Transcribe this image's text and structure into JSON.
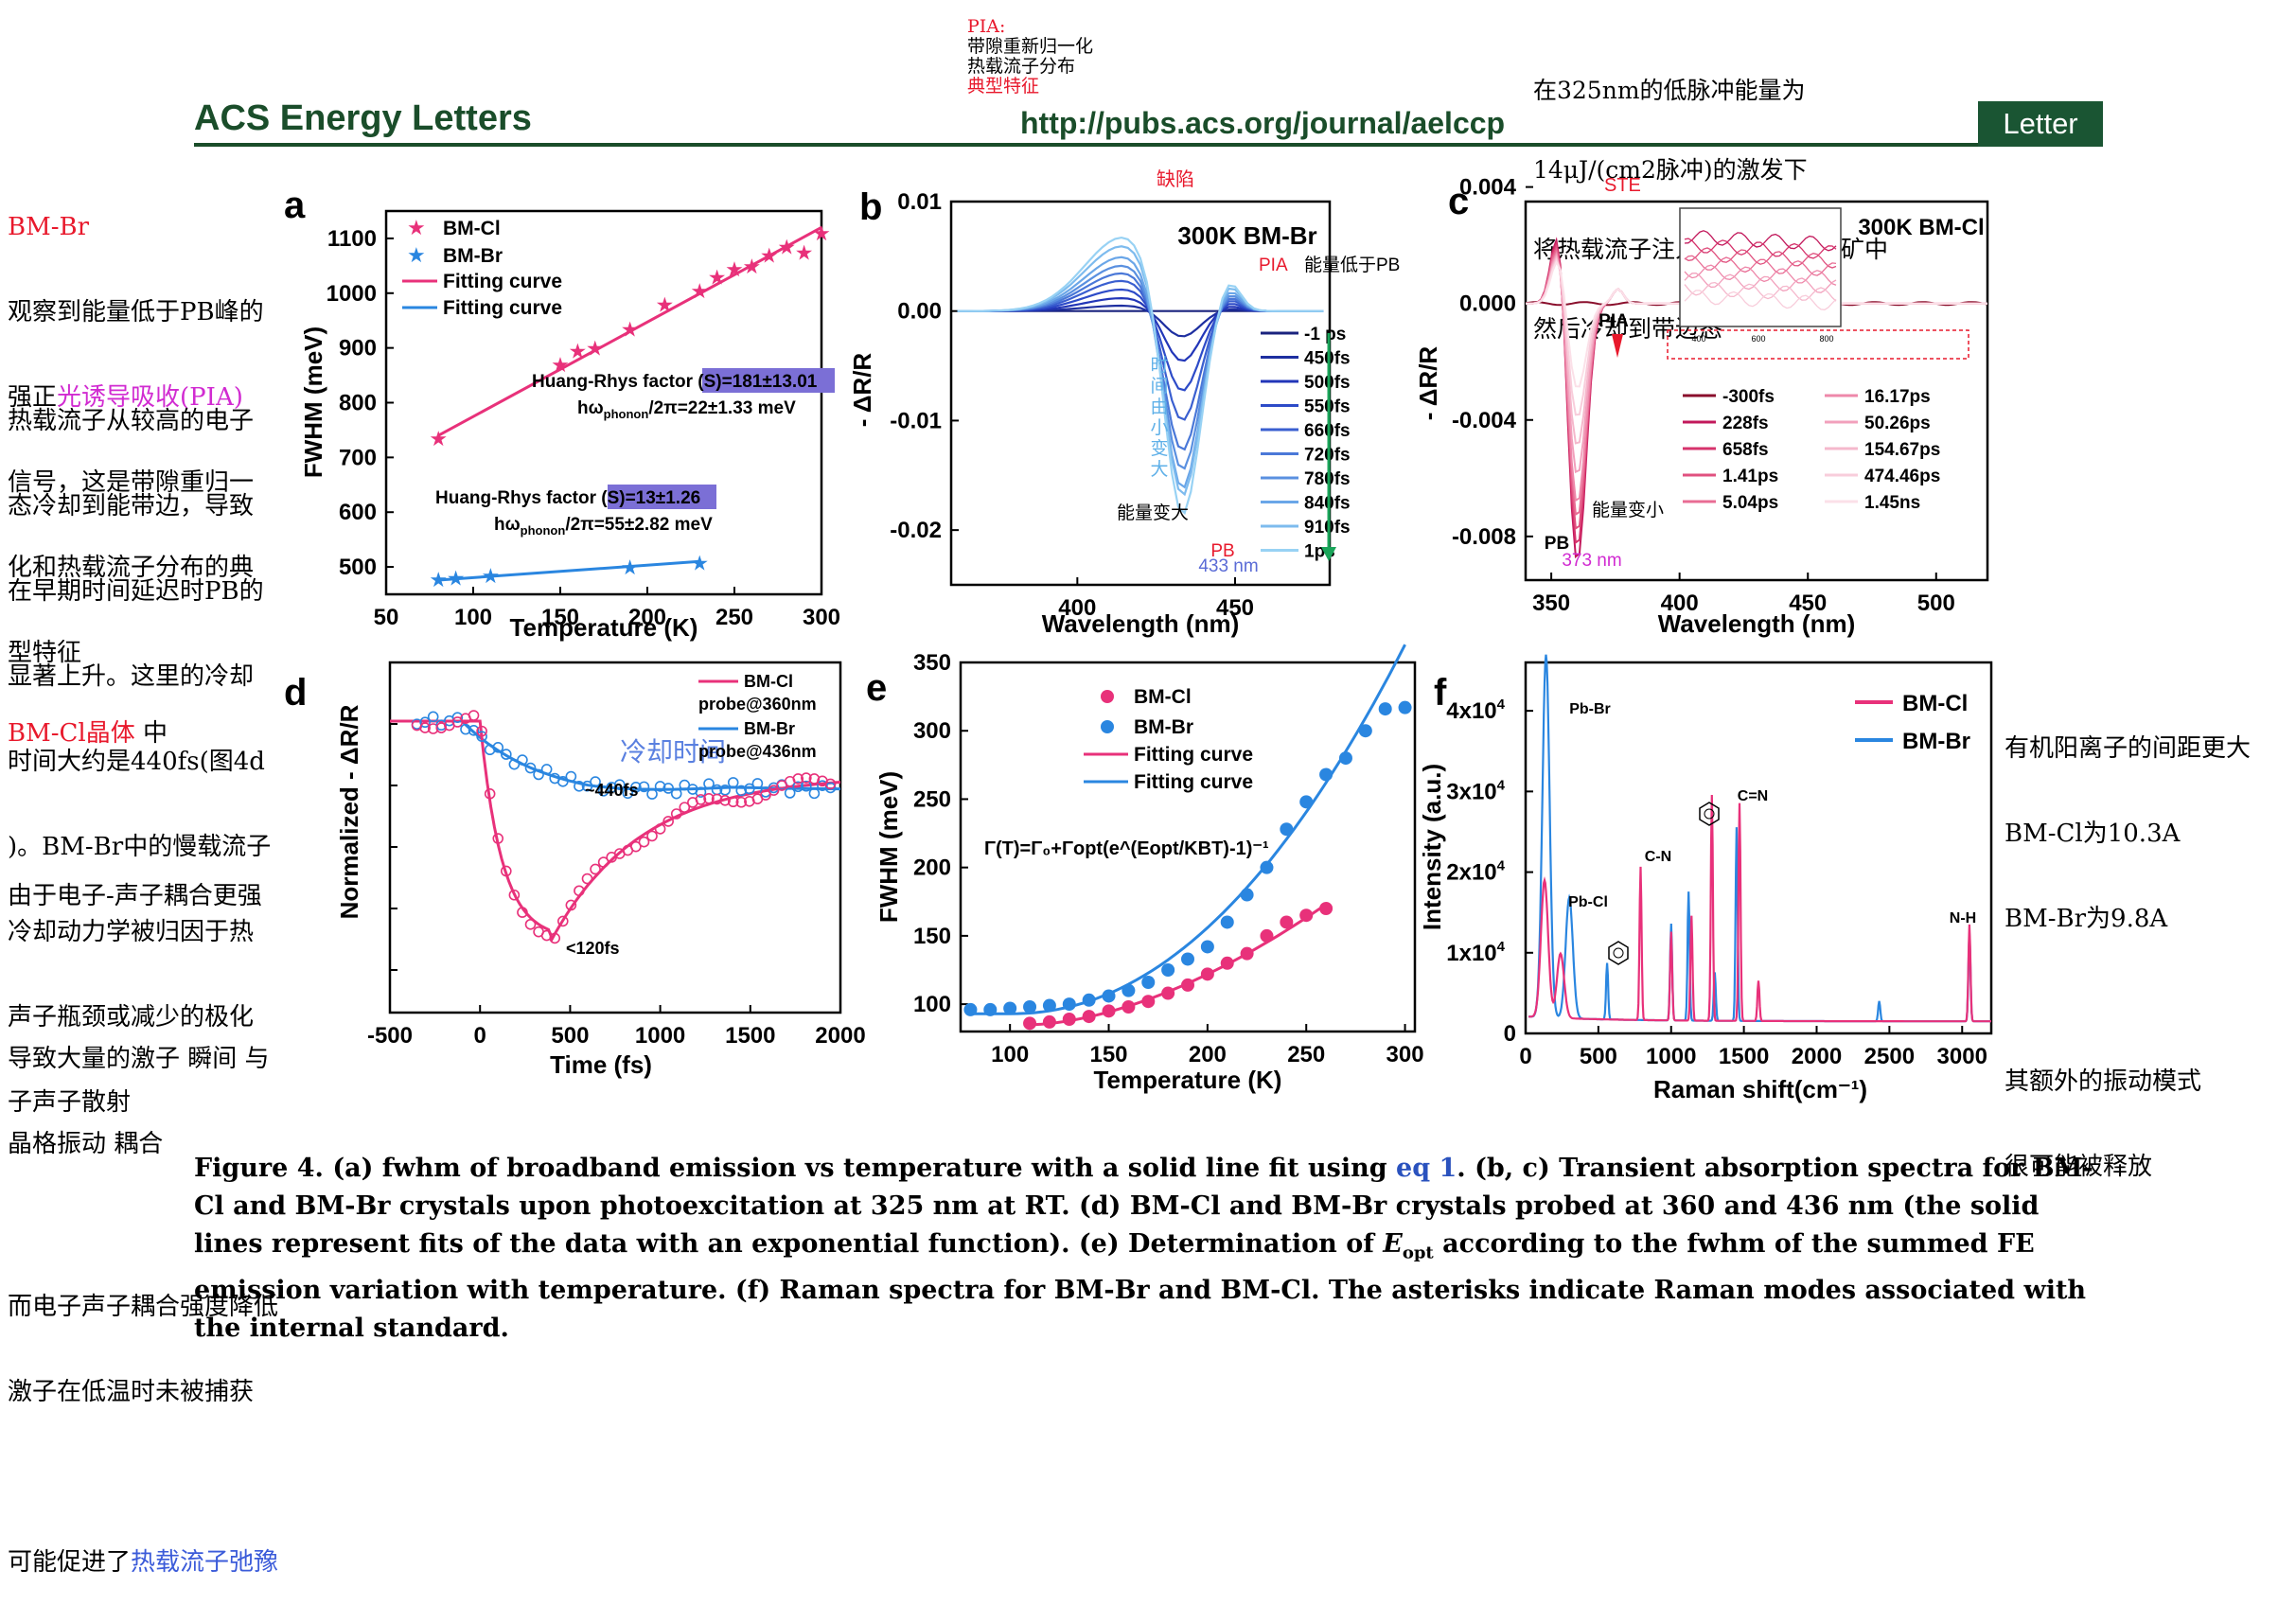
{
  "header": {
    "journal": "ACS Energy Letters",
    "url": "http://pubs.acs.org/journal/aelccp",
    "tab": "Letter",
    "pia_note": {
      "line1": "PIA:",
      "line2": "带隙重新归一化",
      "line3": "热载流子分布",
      "line4": "典型特征"
    },
    "top_right_note": {
      "line1": "在325nm的低脉冲能量为",
      "line2": "14μJ/(cm2脉冲)的激发下",
      "line3": "将热载流子注入两个二维钙钛矿中",
      "line4": "然后冷却到带边态"
    }
  },
  "left_notes": {
    "title": "BM-Br",
    "p1a": "观察到能量低于PB峰的",
    "p1b": "强正",
    "p1b_link": "光诱导吸收",
    "p1b_end": "(PIA)",
    "p1c": "信号，这是带隙重归一",
    "p1d": "化和热载流子分布的典",
    "p1e": "型特征",
    "p2": [
      "热载流子从较高的电子",
      "态冷却到能带边，导致",
      "在早期时间延迟时PB的",
      "显著上升。这里的冷却",
      "时间大约是440fs(图4d",
      ")。BM-Br中的慢载流子",
      "冷却动力学被归因于热",
      "声子瓶颈或减少的极化",
      "子声子散射"
    ],
    "p3_title": "BM-Cl晶体",
    "p3_title_end": "中",
    "p3": "由于电子-声子耦合更强",
    "p4a": "导致大量的激子 瞬间 与",
    "p4b": "晶格振动 耦合",
    "p5a": "而电子声子耦合强度降低",
    "p5b": "激子在低温时未被捕获",
    "p6a": "可能促进了",
    "p6b": "热载流子弛豫"
  },
  "right_notes": {
    "l1": "有机阳离子的间距更大",
    "l2": "BM-Cl为10.3A",
    "l3": "BM-Br为9.8A",
    "l4": "其额外的振动模式",
    "l5": "很可能被释放"
  },
  "caption": {
    "part1": "Figure 4. (a) fwhm of broadband emission vs temperature with a solid line fit using ",
    "link": "eq 1",
    "part2": ". (b, c) Transient absorption spectra for BM-Cl and BM-Br crystals upon photoexcitation at 325 nm at RT. (d) BM-Cl and BM-Br crystals probed at 360 and 436 nm (the solid lines represent fits of the data with an exponential function). (e) Determination of ",
    "eopt": "E",
    "eopt_sub": "opt",
    "part3": " according to the fwhm of the summed FE emission variation with temperature. (f) Raman spectra for BM-Br and BM-Cl. The asterisks indicate Raman modes associated with the internal standard."
  },
  "colors": {
    "pink": "#e8317a",
    "blue": "#2a86e0",
    "darkgreen": "#1a4d2a"
  },
  "chart_data": [
    {
      "panel": "a",
      "type": "scatter",
      "xlabel": "Temperature (K)",
      "ylabel": "FWHM (meV)",
      "xlim": [
        50,
        300
      ],
      "ylim": [
        450,
        1150
      ],
      "xticks": [
        50,
        100,
        150,
        200,
        250,
        300
      ],
      "yticks": [
        500,
        600,
        700,
        800,
        900,
        1000,
        1100
      ],
      "legend": [
        "BM-Cl",
        "BM-Br",
        "Fitting curve",
        "Fitting curve"
      ],
      "annotations": {
        "cl_factor": "Huang-Rhys factor (S)=181±13.01",
        "cl_phonon": "hω",
        "cl_phonon_sub": "phonon",
        "cl_phonon_end": "/2π=22±1.33 meV",
        "br_factor": "Huang-Rhys factor (S)=13±1.26",
        "br_phonon": "hω",
        "br_phonon_sub": "phonon",
        "br_phonon_end": "/2π=55±2.82 meV"
      },
      "series": [
        {
          "name": "BM-Cl",
          "x": [
            80,
            150,
            160,
            170,
            190,
            210,
            230,
            240,
            250,
            260,
            270,
            280,
            290,
            300
          ],
          "y": [
            735,
            870,
            895,
            900,
            935,
            980,
            1005,
            1030,
            1045,
            1050,
            1070,
            1085,
            1075,
            1110
          ]
        },
        {
          "name": "BM-Br",
          "x": [
            80,
            90,
            110,
            190,
            230
          ],
          "y": [
            478,
            480,
            485,
            500,
            508
          ]
        }
      ],
      "fits": [
        {
          "x": [
            80,
            300
          ],
          "y": [
            740,
            1120
          ]
        },
        {
          "x": [
            80,
            230
          ],
          "y": [
            476,
            510
          ]
        }
      ]
    },
    {
      "panel": "b",
      "type": "line",
      "title": "300K BM-Br",
      "xlabel": "Wavelength (nm)",
      "ylabel": "- ΔR/R",
      "xlim": [
        360,
        480
      ],
      "ylim": [
        -0.025,
        0.01
      ],
      "xticks": [
        400,
        450
      ],
      "yticks": [
        0.01,
        0.0,
        -0.01,
        -0.02
      ],
      "legend": [
        "-1 ps",
        "450fs",
        "500fs",
        "550fs",
        "660fs",
        "720fs",
        "780fs",
        "840fs",
        "910fs",
        "1ps"
      ],
      "notes": {
        "pia": "PIA",
        "pia_text": "能量低于PB",
        "top": "缺陷",
        "time": [
          "时",
          "间",
          "由",
          "小",
          "变",
          "大"
        ],
        "energy": "能量变大",
        "pb": "PB",
        "pb_nm": "433 nm"
      },
      "pb_minima": [
        0.0,
        -0.0025,
        -0.005,
        -0.008,
        -0.011,
        -0.014,
        -0.016,
        -0.018,
        -0.019,
        -0.021
      ],
      "pia_peak": [
        0.0,
        0.0005,
        0.0012,
        0.002,
        0.0028,
        0.0035,
        0.0042,
        0.005,
        0.006,
        0.0068
      ]
    },
    {
      "panel": "c",
      "type": "line",
      "title": "300K BM-Cl",
      "xlabel": "Wavelength (nm)",
      "ylabel": "- ΔR/R",
      "xlim": [
        340,
        520
      ],
      "ylim": [
        -0.0095,
        0.0035
      ],
      "xticks": [
        350,
        400,
        450,
        500
      ],
      "yticks": [
        0.004,
        0.0,
        -0.004,
        -0.008
      ],
      "legend": [
        "-300fs",
        "228fs",
        "658fs",
        "1.41ps",
        "5.04ps",
        "16.17ps",
        "50.26ps",
        "154.67ps",
        "474.46ps",
        "1.45ns"
      ],
      "inset_xticks": [
        400,
        600,
        800
      ],
      "notes": {
        "top": "STE",
        "pia": "PIA",
        "energy": "能量变小",
        "pb": "PB",
        "pb_nm": "373 nm"
      }
    },
    {
      "panel": "d",
      "type": "line",
      "xlabel": "Time (fs)",
      "ylabel": "Normalized - ΔR/R",
      "xlim": [
        -500,
        2000
      ],
      "xticks": [
        -500,
        0,
        500,
        1000,
        1500,
        2000
      ],
      "legend": [
        "BM-Cl",
        "probe@360nm",
        "BM-Br",
        "probe@436nm"
      ],
      "notes": {
        "cooling": "冷却时间",
        "br_time": "~440fs",
        "cl_time": "<120fs"
      }
    },
    {
      "panel": "e",
      "type": "scatter",
      "xlabel": "Temperature (K)",
      "ylabel": "FWHM (meV)",
      "xlim": [
        75,
        305
      ],
      "ylim": [
        80,
        350
      ],
      "xticks": [
        100,
        150,
        200,
        250,
        300
      ],
      "yticks": [
        100,
        150,
        200,
        250,
        300,
        350
      ],
      "legend": [
        "BM-Cl",
        "BM-Br",
        "Fitting curve",
        "Fitting curve"
      ],
      "formula": "Γ(T)=Γ₀+Γopt(e^(Eopt/KBT)-1)⁻¹",
      "series": [
        {
          "name": "BM-Cl",
          "x": [
            110,
            120,
            130,
            140,
            150,
            160,
            170,
            180,
            190,
            200,
            210,
            220,
            230,
            240,
            250,
            260
          ],
          "y": [
            86,
            87,
            89,
            91,
            95,
            98,
            102,
            108,
            114,
            122,
            130,
            137,
            150,
            160,
            165,
            170
          ]
        },
        {
          "name": "BM-Br",
          "x": [
            80,
            90,
            100,
            110,
            120,
            130,
            140,
            150,
            160,
            170,
            180,
            190,
            200,
            210,
            220,
            230,
            240,
            250,
            260,
            270,
            280,
            290,
            300
          ],
          "y": [
            96,
            96,
            97,
            98,
            99,
            100,
            103,
            106,
            110,
            116,
            125,
            133,
            142,
            160,
            180,
            200,
            228,
            248,
            268,
            280,
            300,
            316,
            317
          ]
        }
      ]
    },
    {
      "panel": "f",
      "type": "line",
      "xlabel": "Raman shift(cm⁻¹)",
      "ylabel": "Intensity (a.u.)",
      "xlim": [
        0,
        3200
      ],
      "ylim": [
        0,
        46000
      ],
      "xticks": [
        0,
        500,
        1000,
        1500,
        2000,
        2500,
        3000
      ],
      "ytick_labels": [
        "0",
        "1x10",
        "2x10",
        "3x10",
        "4x10"
      ],
      "ytick_exp": "4",
      "legend": [
        "BM-Cl",
        "BM-Br"
      ],
      "labels": {
        "pbbr": "Pb-Br",
        "pbcl": "Pb-Cl",
        "cn": "C-N",
        "ceqn": "C=N",
        "nh": "N-H"
      },
      "series": [
        {
          "name": "BM-Br",
          "peaks": [
            [
              140,
              45000
            ],
            [
              300,
              15000
            ],
            [
              560,
              7000
            ],
            [
              1000,
              12000
            ],
            [
              1120,
              16000
            ],
            [
              1300,
              6000
            ],
            [
              1450,
              24000
            ],
            [
              2430,
              2500
            ],
            [
              3050,
              11000
            ]
          ]
        },
        {
          "name": "BM-Cl",
          "peaks": [
            [
              130,
              17000
            ],
            [
              240,
              8000
            ],
            [
              790,
              19000
            ],
            [
              1000,
              11000
            ],
            [
              1140,
              13000
            ],
            [
              1280,
              28000
            ],
            [
              1470,
              27000
            ],
            [
              1600,
              5000
            ],
            [
              3050,
              12000
            ]
          ]
        }
      ]
    }
  ],
  "panel_letters": [
    "a",
    "b",
    "c",
    "d",
    "e",
    "f"
  ]
}
